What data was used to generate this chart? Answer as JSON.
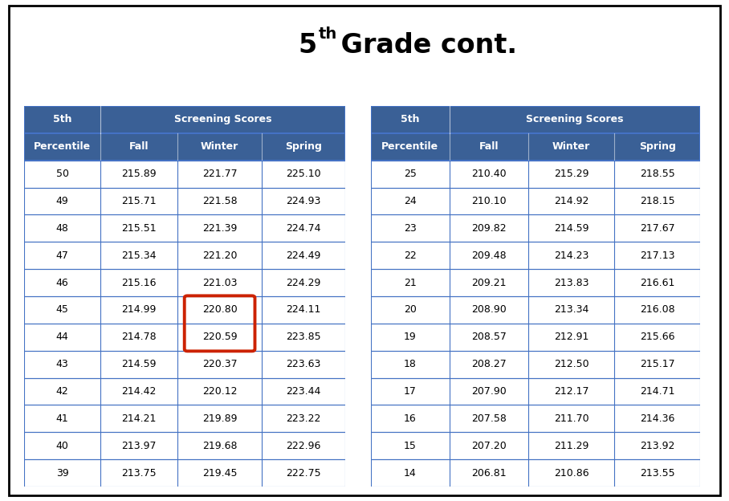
{
  "title_base": "5",
  "title_super": "th",
  "title_suffix": " Grade cont.",
  "header_color": "#3A6096",
  "header_text_color": "#FFFFFF",
  "border_color": "#4472C4",
  "background_color": "#FFFFFF",
  "circle_color": "#CC2200",
  "left_table": {
    "col_headers": [
      "Percentile",
      "Fall",
      "Winter",
      "Spring"
    ],
    "rows": [
      [
        "50",
        "215.89",
        "221.77",
        "225.10"
      ],
      [
        "49",
        "215.71",
        "221.58",
        "224.93"
      ],
      [
        "48",
        "215.51",
        "221.39",
        "224.74"
      ],
      [
        "47",
        "215.34",
        "221.20",
        "224.49"
      ],
      [
        "46",
        "215.16",
        "221.03",
        "224.29"
      ],
      [
        "45",
        "214.99",
        "220.80",
        "224.11"
      ],
      [
        "44",
        "214.78",
        "220.59",
        "223.85"
      ],
      [
        "43",
        "214.59",
        "220.37",
        "223.63"
      ],
      [
        "42",
        "214.42",
        "220.12",
        "223.44"
      ],
      [
        "41",
        "214.21",
        "219.89",
        "223.22"
      ],
      [
        "40",
        "213.97",
        "219.68",
        "222.96"
      ],
      [
        "39",
        "213.75",
        "219.45",
        "222.75"
      ]
    ],
    "circle_rows": [
      5,
      6
    ],
    "circle_col": 2
  },
  "right_table": {
    "col_headers": [
      "Percentile",
      "Fall",
      "Winter",
      "Spring"
    ],
    "rows": [
      [
        "25",
        "210.40",
        "215.29",
        "218.55"
      ],
      [
        "24",
        "210.10",
        "214.92",
        "218.15"
      ],
      [
        "23",
        "209.82",
        "214.59",
        "217.67"
      ],
      [
        "22",
        "209.48",
        "214.23",
        "217.13"
      ],
      [
        "21",
        "209.21",
        "213.83",
        "216.61"
      ],
      [
        "20",
        "208.90",
        "213.34",
        "216.08"
      ],
      [
        "19",
        "208.57",
        "212.91",
        "215.66"
      ],
      [
        "18",
        "208.27",
        "212.50",
        "215.17"
      ],
      [
        "17",
        "207.90",
        "212.17",
        "214.71"
      ],
      [
        "16",
        "207.58",
        "211.70",
        "214.36"
      ],
      [
        "15",
        "207.20",
        "211.29",
        "213.92"
      ],
      [
        "14",
        "206.81",
        "210.86",
        "213.55"
      ]
    ]
  }
}
